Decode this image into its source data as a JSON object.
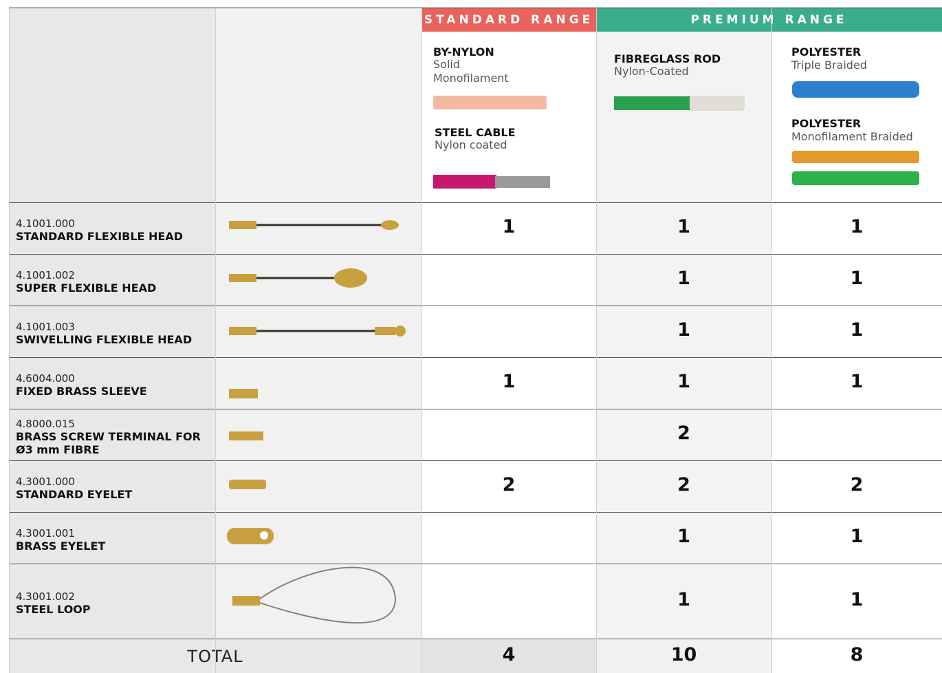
{
  "header": {
    "standard_range": "STANDARD RANGE",
    "premium_range": "PREMIUM RANGE",
    "columns": [
      {
        "items": [
          {
            "name": "BY-NYLON",
            "desc": "Solid Monofilament"
          },
          {
            "name": "STEEL CABLE",
            "desc": "Nylon coated"
          }
        ]
      },
      {
        "items": [
          {
            "name": "FIBREGLASS ROD",
            "desc": "Nylon-Coated"
          }
        ]
      },
      {
        "items": [
          {
            "name": "POLYESTER",
            "desc": "Triple Braided"
          },
          {
            "name": "POLYESTER",
            "desc": "Monofilament Braided"
          }
        ]
      }
    ]
  },
  "rows": [
    {
      "code": "4.1001.000",
      "name": "STANDARD FLEXIBLE HEAD",
      "values": [
        1,
        1,
        1
      ]
    },
    {
      "code": "4.1001.002",
      "name": "SUPER FLEXIBLE HEAD",
      "values": [
        null,
        1,
        1
      ]
    },
    {
      "code": "4.1001.003",
      "name": "SWIVELLING FLEXIBLE HEAD",
      "values": [
        null,
        1,
        1
      ]
    },
    {
      "code": "4.6004.000",
      "name": "FIXED BRASS SLEEVE",
      "values": [
        1,
        1,
        1
      ]
    },
    {
      "code": "4.8000.015",
      "name": "BRASS SCREW TERMINAL FOR Ø3 mm FIBRE",
      "values": [
        null,
        2,
        null
      ]
    },
    {
      "code": "4.3001.000",
      "name": "STANDARD EYELET",
      "values": [
        2,
        2,
        2
      ]
    },
    {
      "code": "4.3001.001",
      "name": "BRASS EYELET",
      "values": [
        null,
        1,
        1
      ]
    },
    {
      "code": "4.3001.002",
      "name": "STEEL LOOP",
      "values": [
        null,
        1,
        1
      ]
    }
  ],
  "total": {
    "label": "TOTAL",
    "values": [
      4,
      10,
      8
    ]
  }
}
